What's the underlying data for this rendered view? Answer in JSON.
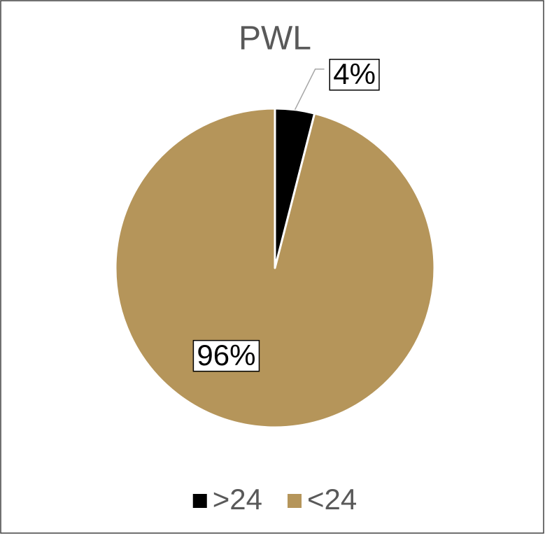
{
  "chart_data": {
    "type": "pie",
    "title": "PWL",
    "categories": [
      ">24",
      "<24"
    ],
    "values": [
      4,
      96
    ],
    "value_labels": [
      "4%",
      "96%"
    ],
    "colors": [
      "#000000",
      "#b5955a"
    ],
    "legend": "bottom"
  }
}
